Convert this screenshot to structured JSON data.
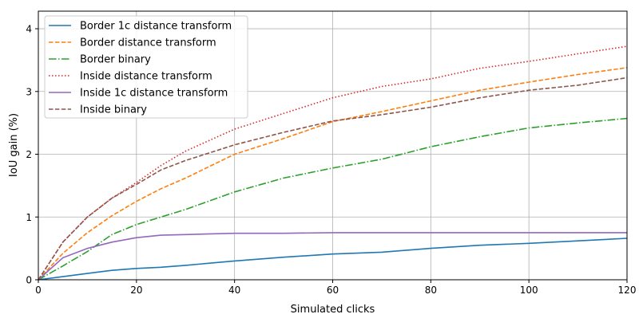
{
  "chart_data": {
    "type": "line",
    "title": "",
    "xlabel": "Simulated clicks",
    "ylabel": "IoU gain (%)",
    "xlim": [
      0,
      120
    ],
    "ylim": [
      0,
      4.28
    ],
    "xticks": [
      0,
      20,
      40,
      60,
      80,
      100,
      120
    ],
    "yticks": [
      0,
      1,
      2,
      3,
      4
    ],
    "grid": true,
    "legend_position": "top-left",
    "x": [
      0,
      5,
      10,
      15,
      20,
      25,
      30,
      40,
      50,
      60,
      70,
      80,
      90,
      100,
      110,
      120
    ],
    "series": [
      {
        "name": "Border 1c distance transform",
        "color": "#1f77b4",
        "dash": "solid",
        "values": [
          0,
          0.05,
          0.1,
          0.15,
          0.18,
          0.2,
          0.23,
          0.3,
          0.36,
          0.41,
          0.44,
          0.5,
          0.55,
          0.58,
          0.62,
          0.66
        ]
      },
      {
        "name": "Border distance transform",
        "color": "#ff7f0e",
        "dash": "dashed",
        "values": [
          0,
          0.42,
          0.75,
          1.02,
          1.25,
          1.45,
          1.62,
          2.0,
          2.25,
          2.52,
          2.68,
          2.85,
          3.02,
          3.15,
          3.27,
          3.38
        ]
      },
      {
        "name": "Border binary",
        "color": "#2ca02c",
        "dash": "dashdot",
        "values": [
          0,
          0.22,
          0.45,
          0.72,
          0.88,
          1.0,
          1.12,
          1.4,
          1.62,
          1.78,
          1.92,
          2.12,
          2.28,
          2.42,
          2.5,
          2.57
        ]
      },
      {
        "name": "Inside distance transform",
        "color": "#d62728",
        "dash": "dotted",
        "values": [
          0,
          0.6,
          1.0,
          1.3,
          1.55,
          1.82,
          2.05,
          2.4,
          2.65,
          2.9,
          3.08,
          3.2,
          3.37,
          3.48,
          3.6,
          3.72
        ]
      },
      {
        "name": "Inside 1c distance transform",
        "color": "#9467bd",
        "dash": "solid",
        "values": [
          0,
          0.35,
          0.5,
          0.6,
          0.67,
          0.71,
          0.72,
          0.74,
          0.74,
          0.75,
          0.75,
          0.75,
          0.75,
          0.75,
          0.75,
          0.75
        ]
      },
      {
        "name": "Inside binary",
        "color": "#8c564b",
        "dash": "dashed",
        "values": [
          0,
          0.6,
          1.0,
          1.3,
          1.52,
          1.75,
          1.9,
          2.15,
          2.35,
          2.53,
          2.63,
          2.75,
          2.9,
          3.02,
          3.1,
          3.22
        ]
      }
    ]
  }
}
